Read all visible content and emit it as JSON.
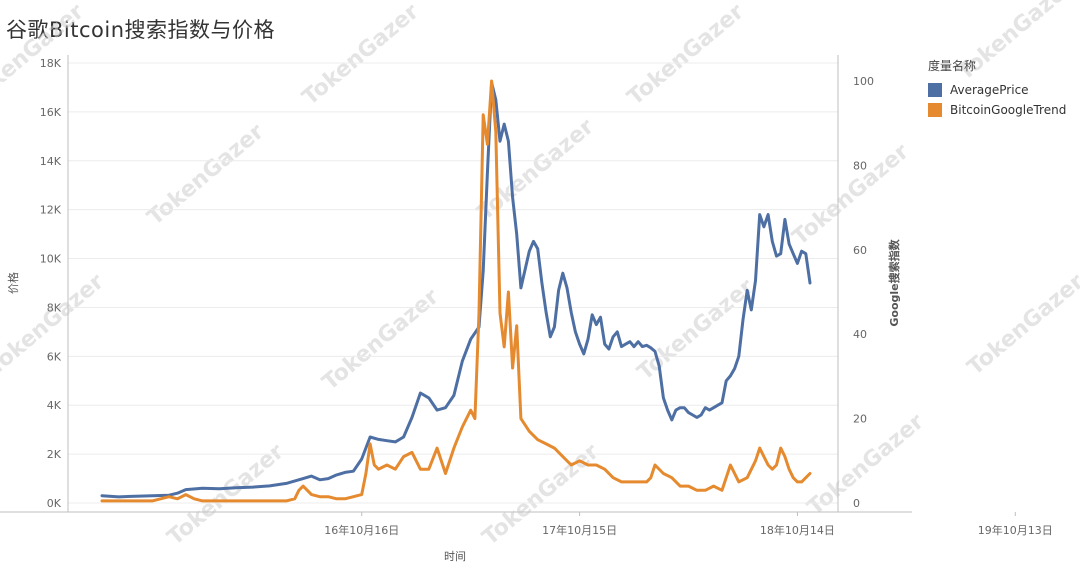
{
  "title": "谷歌Bitcoin搜索指数与价格",
  "watermark_text": "TokenGazer",
  "colors": {
    "price": "#4e6fa3",
    "trend": "#e58a2f",
    "grid": "#ececec",
    "axis": "#bfbfbf"
  },
  "legend": {
    "title": "度量名称",
    "items": [
      {
        "label": "AveragePrice",
        "color": "#4e6fa3"
      },
      {
        "label": "BitcoinGoogleTrend",
        "color": "#e58a2f"
      }
    ]
  },
  "chart_data": {
    "type": "line",
    "title": "谷歌Bitcoin搜索指数与价格",
    "xlabel": "时间",
    "ylabel_left": "价格",
    "ylabel_right": "Google搜索指数",
    "x_ticks": [
      "16年10月16日",
      "17年10月15日",
      "18年10月14日",
      "19年10月13日"
    ],
    "x_tick_positions_weeks": [
      62,
      114,
      166,
      218
    ],
    "y_left_ticks": [
      "0K",
      "2K",
      "4K",
      "6K",
      "8K",
      "10K",
      "12K",
      "14K",
      "16K",
      "18K"
    ],
    "y_left_range": [
      0,
      18000
    ],
    "y_right_ticks": [
      "0",
      "20",
      "40",
      "60",
      "80",
      "100"
    ],
    "y_right_range": [
      0,
      100
    ],
    "grid": true,
    "legend_position": "right",
    "series": [
      {
        "name": "AveragePrice",
        "axis": "left",
        "points": [
          [
            0,
            300
          ],
          [
            4,
            250
          ],
          [
            8,
            280
          ],
          [
            12,
            300
          ],
          [
            16,
            320
          ],
          [
            18,
            400
          ],
          [
            20,
            550
          ],
          [
            24,
            600
          ],
          [
            28,
            580
          ],
          [
            32,
            620
          ],
          [
            36,
            650
          ],
          [
            40,
            700
          ],
          [
            44,
            800
          ],
          [
            48,
            1000
          ],
          [
            50,
            1100
          ],
          [
            52,
            950
          ],
          [
            54,
            1000
          ],
          [
            56,
            1150
          ],
          [
            58,
            1250
          ],
          [
            60,
            1300
          ],
          [
            62,
            1800
          ],
          [
            64,
            2700
          ],
          [
            66,
            2600
          ],
          [
            68,
            2550
          ],
          [
            70,
            2500
          ],
          [
            72,
            2700
          ],
          [
            74,
            3500
          ],
          [
            76,
            4500
          ],
          [
            78,
            4300
          ],
          [
            80,
            3800
          ],
          [
            82,
            3900
          ],
          [
            84,
            4400
          ],
          [
            86,
            5800
          ],
          [
            88,
            6700
          ],
          [
            90,
            7200
          ],
          [
            91,
            9500
          ],
          [
            92,
            13500
          ],
          [
            93,
            17200
          ],
          [
            94,
            16500
          ],
          [
            95,
            14800
          ],
          [
            96,
            15500
          ],
          [
            97,
            14800
          ],
          [
            98,
            12500
          ],
          [
            99,
            11000
          ],
          [
            100,
            8800
          ],
          [
            102,
            10300
          ],
          [
            103,
            10700
          ],
          [
            104,
            10400
          ],
          [
            105,
            9000
          ],
          [
            106,
            7800
          ],
          [
            107,
            6800
          ],
          [
            108,
            7200
          ],
          [
            109,
            8700
          ],
          [
            110,
            9400
          ],
          [
            111,
            8800
          ],
          [
            112,
            7800
          ],
          [
            113,
            7000
          ],
          [
            114,
            6500
          ],
          [
            115,
            6100
          ],
          [
            116,
            6700
          ],
          [
            117,
            7700
          ],
          [
            118,
            7300
          ],
          [
            119,
            7600
          ],
          [
            120,
            6500
          ],
          [
            121,
            6300
          ],
          [
            122,
            6800
          ],
          [
            123,
            7000
          ],
          [
            124,
            6400
          ],
          [
            125,
            6500
          ],
          [
            126,
            6600
          ],
          [
            127,
            6400
          ],
          [
            128,
            6600
          ],
          [
            129,
            6400
          ],
          [
            130,
            6450
          ],
          [
            131,
            6350
          ],
          [
            132,
            6200
          ],
          [
            133,
            5600
          ],
          [
            134,
            4300
          ],
          [
            135,
            3800
          ],
          [
            136,
            3400
          ],
          [
            137,
            3800
          ],
          [
            138,
            3900
          ],
          [
            139,
            3900
          ],
          [
            140,
            3700
          ],
          [
            141,
            3600
          ],
          [
            142,
            3500
          ],
          [
            143,
            3600
          ],
          [
            144,
            3900
          ],
          [
            145,
            3800
          ],
          [
            146,
            3900
          ],
          [
            147,
            4000
          ],
          [
            148,
            4100
          ],
          [
            149,
            5000
          ],
          [
            150,
            5200
          ],
          [
            151,
            5500
          ],
          [
            152,
            6000
          ],
          [
            153,
            7500
          ],
          [
            154,
            8700
          ],
          [
            155,
            7900
          ],
          [
            156,
            9100
          ],
          [
            157,
            11800
          ],
          [
            158,
            11300
          ],
          [
            159,
            11800
          ],
          [
            160,
            10700
          ],
          [
            161,
            10100
          ],
          [
            162,
            10200
          ],
          [
            163,
            11600
          ],
          [
            164,
            10600
          ],
          [
            165,
            10200
          ],
          [
            166,
            9800
          ],
          [
            167,
            10300
          ],
          [
            168,
            10200
          ],
          [
            169,
            9000
          ]
        ]
      },
      {
        "name": "BitcoinGoogleTrend",
        "axis": "right",
        "points": [
          [
            0,
            0.5
          ],
          [
            4,
            0.5
          ],
          [
            8,
            0.5
          ],
          [
            12,
            0.5
          ],
          [
            14,
            1
          ],
          [
            16,
            1.5
          ],
          [
            18,
            1
          ],
          [
            20,
            2
          ],
          [
            22,
            1
          ],
          [
            24,
            0.5
          ],
          [
            28,
            0.5
          ],
          [
            32,
            0.5
          ],
          [
            36,
            0.5
          ],
          [
            40,
            0.5
          ],
          [
            44,
            0.5
          ],
          [
            46,
            1
          ],
          [
            47,
            3
          ],
          [
            48,
            4
          ],
          [
            50,
            2
          ],
          [
            52,
            1.5
          ],
          [
            54,
            1.5
          ],
          [
            56,
            1
          ],
          [
            58,
            1
          ],
          [
            60,
            1.5
          ],
          [
            62,
            2
          ],
          [
            63,
            7
          ],
          [
            64,
            14
          ],
          [
            65,
            9
          ],
          [
            66,
            8
          ],
          [
            68,
            9
          ],
          [
            70,
            8
          ],
          [
            72,
            11
          ],
          [
            74,
            12
          ],
          [
            76,
            8
          ],
          [
            78,
            8
          ],
          [
            80,
            13
          ],
          [
            82,
            7
          ],
          [
            84,
            13
          ],
          [
            86,
            18
          ],
          [
            87,
            20
          ],
          [
            88,
            22
          ],
          [
            89,
            20
          ],
          [
            90,
            45
          ],
          [
            91,
            92
          ],
          [
            92,
            85
          ],
          [
            93,
            100
          ],
          [
            94,
            88
          ],
          [
            95,
            45
          ],
          [
            96,
            37
          ],
          [
            97,
            50
          ],
          [
            98,
            32
          ],
          [
            99,
            42
          ],
          [
            100,
            20
          ],
          [
            102,
            17
          ],
          [
            104,
            15
          ],
          [
            106,
            14
          ],
          [
            108,
            13
          ],
          [
            110,
            11
          ],
          [
            112,
            9
          ],
          [
            114,
            10
          ],
          [
            116,
            9
          ],
          [
            118,
            9
          ],
          [
            120,
            8
          ],
          [
            122,
            6
          ],
          [
            124,
            5
          ],
          [
            126,
            5
          ],
          [
            128,
            5
          ],
          [
            130,
            5
          ],
          [
            131,
            6
          ],
          [
            132,
            9
          ],
          [
            134,
            7
          ],
          [
            136,
            6
          ],
          [
            138,
            4
          ],
          [
            140,
            4
          ],
          [
            142,
            3
          ],
          [
            144,
            3
          ],
          [
            146,
            4
          ],
          [
            148,
            3
          ],
          [
            150,
            9
          ],
          [
            152,
            5
          ],
          [
            154,
            6
          ],
          [
            156,
            10
          ],
          [
            157,
            13
          ],
          [
            158,
            11
          ],
          [
            159,
            9
          ],
          [
            160,
            8
          ],
          [
            161,
            9
          ],
          [
            162,
            13
          ],
          [
            163,
            11
          ],
          [
            164,
            8
          ],
          [
            165,
            6
          ],
          [
            166,
            5
          ],
          [
            167,
            5
          ],
          [
            168,
            6
          ],
          [
            169,
            7
          ]
        ]
      }
    ]
  }
}
